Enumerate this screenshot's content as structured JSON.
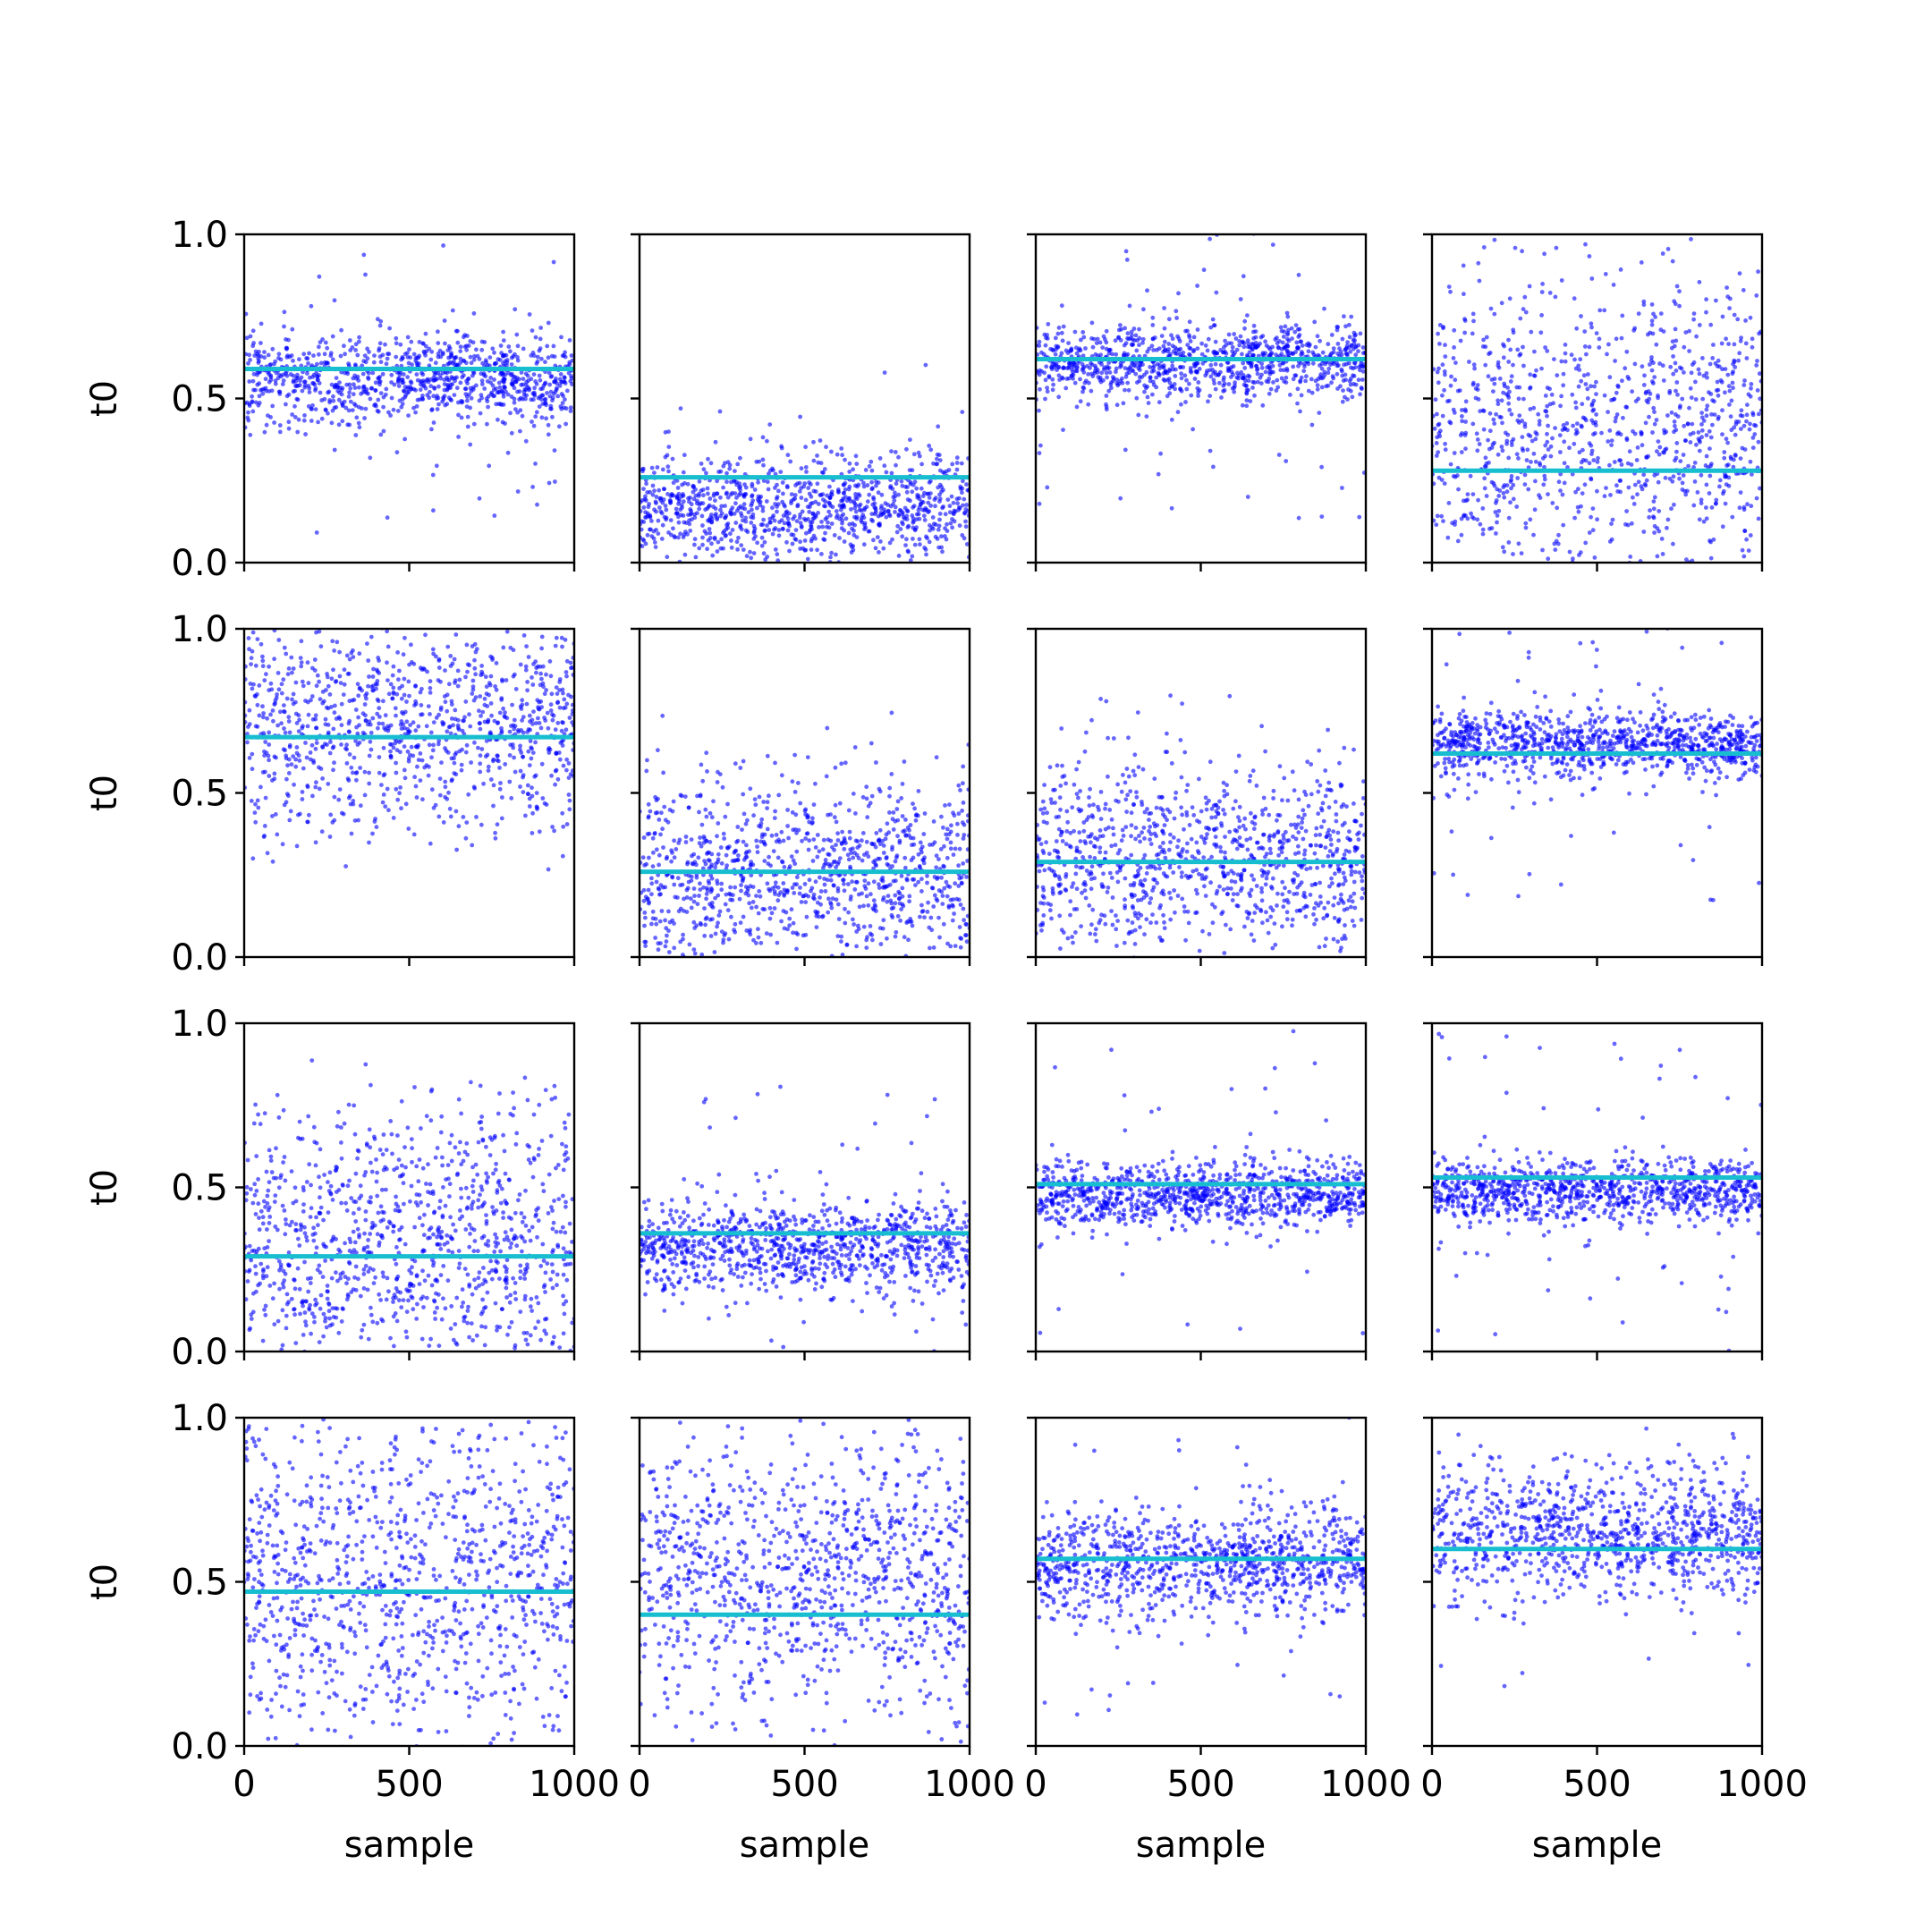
{
  "figure": {
    "rows": 4,
    "cols": 4,
    "point_color": "#0000ff",
    "line_color": "#17becf",
    "axes_color": "#000000"
  },
  "chart_data": {
    "type": "scatter",
    "xlabel": "sample",
    "ylabel": "t0",
    "xlim": [
      0,
      1000
    ],
    "ylim": [
      0,
      1
    ],
    "x_ticks": [
      0,
      500,
      1000
    ],
    "y_ticks": [
      0.0,
      0.5,
      1.0
    ],
    "x_tick_labels": [
      "0",
      "500",
      "1000"
    ],
    "y_tick_labels": [
      "0.0",
      "0.5",
      "1.0"
    ],
    "samples_per_panel": 1000,
    "panels": [
      {
        "row": 0,
        "col": 0,
        "line": 0.59,
        "center": 0.56,
        "spread": 0.07,
        "outliers": 0.04
      },
      {
        "row": 0,
        "col": 1,
        "line": 0.26,
        "center": 0.17,
        "spread": 0.08,
        "outliers": 0.01
      },
      {
        "row": 0,
        "col": 2,
        "line": 0.62,
        "center": 0.61,
        "spread": 0.06,
        "outliers": 0.05
      },
      {
        "row": 0,
        "col": 3,
        "line": 0.28,
        "center": 0.4,
        "spread": 0.25,
        "outliers": 0.0
      },
      {
        "row": 1,
        "col": 0,
        "line": 0.67,
        "center": 0.72,
        "spread": 0.16,
        "outliers": 0.01
      },
      {
        "row": 1,
        "col": 1,
        "line": 0.26,
        "center": 0.25,
        "spread": 0.14,
        "outliers": 0.03
      },
      {
        "row": 1,
        "col": 2,
        "line": 0.29,
        "center": 0.3,
        "spread": 0.14,
        "outliers": 0.06
      },
      {
        "row": 1,
        "col": 3,
        "line": 0.62,
        "center": 0.65,
        "spread": 0.05,
        "outliers": 0.04
      },
      {
        "row": 2,
        "col": 0,
        "line": 0.29,
        "center": 0.33,
        "spread": 0.2,
        "outliers": 0.03
      },
      {
        "row": 2,
        "col": 1,
        "line": 0.36,
        "center": 0.32,
        "spread": 0.07,
        "outliers": 0.04
      },
      {
        "row": 2,
        "col": 2,
        "line": 0.51,
        "center": 0.48,
        "spread": 0.05,
        "outliers": 0.02
      },
      {
        "row": 2,
        "col": 3,
        "line": 0.53,
        "center": 0.49,
        "spread": 0.05,
        "outliers": 0.05
      },
      {
        "row": 3,
        "col": 0,
        "line": 0.47,
        "center": 0.5,
        "spread": 0.26,
        "outliers": 0.0
      },
      {
        "row": 3,
        "col": 1,
        "line": 0.4,
        "center": 0.52,
        "spread": 0.22,
        "outliers": 0.0
      },
      {
        "row": 3,
        "col": 2,
        "line": 0.57,
        "center": 0.56,
        "spread": 0.08,
        "outliers": 0.04
      },
      {
        "row": 3,
        "col": 3,
        "line": 0.6,
        "center": 0.65,
        "spread": 0.1,
        "outliers": 0.03
      }
    ]
  }
}
